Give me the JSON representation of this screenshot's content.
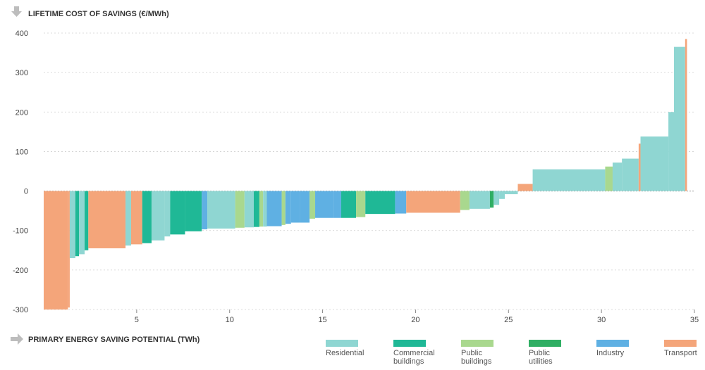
{
  "chart_data": {
    "type": "bar",
    "variant": "marginal-cost-curve",
    "title": "LIFETIME COST OF SAVINGS (€/MWh)",
    "xlabel": "PRIMARY ENERGY SAVING POTENTIAL (TWh)",
    "ylabel": "LIFETIME COST OF SAVINGS (€/MWh)",
    "xlim": [
      0,
      35
    ],
    "ylim": [
      -300,
      400
    ],
    "x_ticks": [
      "5",
      "10",
      "15",
      "20",
      "25",
      "30",
      "35"
    ],
    "y_ticks": [
      "400",
      "300",
      "200",
      "100",
      "0",
      "-100",
      "-200",
      "-300"
    ],
    "grid": "horizontal dashed",
    "legend_position": "bottom-right",
    "colors": {
      "Residential": "#8fd6d2",
      "Commercial buildings": "#1fb896",
      "Public buildings": "#a9d88e",
      "Public utilities": "#2fae63",
      "Industry": "#5fb0e3",
      "Transport": "#f4a57a"
    },
    "series": [
      {
        "name": "Residential"
      },
      {
        "name": "Commercial buildings"
      },
      {
        "name": "Public buildings"
      },
      {
        "name": "Public utilities"
      },
      {
        "name": "Industry"
      },
      {
        "name": "Transport"
      }
    ],
    "bars": [
      {
        "x0": 0.0,
        "x1": 1.3,
        "value": -300,
        "sector": "Transport"
      },
      {
        "x0": 1.3,
        "x1": 1.4,
        "value": -295,
        "sector": "Transport"
      },
      {
        "x0": 1.4,
        "x1": 1.7,
        "value": -170,
        "sector": "Residential"
      },
      {
        "x0": 1.7,
        "x1": 1.9,
        "value": -165,
        "sector": "Commercial buildings"
      },
      {
        "x0": 1.9,
        "x1": 2.2,
        "value": -160,
        "sector": "Residential"
      },
      {
        "x0": 2.2,
        "x1": 2.4,
        "value": -150,
        "sector": "Commercial buildings"
      },
      {
        "x0": 2.4,
        "x1": 4.4,
        "value": -145,
        "sector": "Transport"
      },
      {
        "x0": 4.4,
        "x1": 4.7,
        "value": -138,
        "sector": "Residential"
      },
      {
        "x0": 4.7,
        "x1": 5.3,
        "value": -135,
        "sector": "Transport"
      },
      {
        "x0": 5.3,
        "x1": 5.8,
        "value": -132,
        "sector": "Commercial buildings"
      },
      {
        "x0": 5.8,
        "x1": 6.5,
        "value": -125,
        "sector": "Residential"
      },
      {
        "x0": 6.5,
        "x1": 6.8,
        "value": -115,
        "sector": "Residential"
      },
      {
        "x0": 6.8,
        "x1": 7.6,
        "value": -110,
        "sector": "Commercial buildings"
      },
      {
        "x0": 7.6,
        "x1": 8.5,
        "value": -102,
        "sector": "Commercial buildings"
      },
      {
        "x0": 8.5,
        "x1": 8.8,
        "value": -97,
        "sector": "Industry"
      },
      {
        "x0": 8.8,
        "x1": 10.3,
        "value": -95,
        "sector": "Residential"
      },
      {
        "x0": 10.3,
        "x1": 10.8,
        "value": -93,
        "sector": "Public buildings"
      },
      {
        "x0": 10.8,
        "x1": 11.3,
        "value": -92,
        "sector": "Residential"
      },
      {
        "x0": 11.3,
        "x1": 11.6,
        "value": -91,
        "sector": "Commercial buildings"
      },
      {
        "x0": 11.6,
        "x1": 11.8,
        "value": -90,
        "sector": "Public buildings"
      },
      {
        "x0": 11.8,
        "x1": 12.0,
        "value": -90,
        "sector": "Residential"
      },
      {
        "x0": 12.0,
        "x1": 12.8,
        "value": -89,
        "sector": "Industry"
      },
      {
        "x0": 12.8,
        "x1": 13.0,
        "value": -86,
        "sector": "Public buildings"
      },
      {
        "x0": 13.0,
        "x1": 13.3,
        "value": -83,
        "sector": "Industry"
      },
      {
        "x0": 13.3,
        "x1": 13.8,
        "value": -80,
        "sector": "Industry"
      },
      {
        "x0": 13.8,
        "x1": 14.3,
        "value": -80,
        "sector": "Industry"
      },
      {
        "x0": 14.3,
        "x1": 14.6,
        "value": -70,
        "sector": "Public buildings"
      },
      {
        "x0": 14.6,
        "x1": 15.6,
        "value": -68,
        "sector": "Industry"
      },
      {
        "x0": 15.6,
        "x1": 16.0,
        "value": -68,
        "sector": "Industry"
      },
      {
        "x0": 16.0,
        "x1": 16.8,
        "value": -68,
        "sector": "Commercial buildings"
      },
      {
        "x0": 16.8,
        "x1": 17.3,
        "value": -66,
        "sector": "Public buildings"
      },
      {
        "x0": 17.3,
        "x1": 18.9,
        "value": -58,
        "sector": "Commercial buildings"
      },
      {
        "x0": 18.9,
        "x1": 19.5,
        "value": -57,
        "sector": "Industry"
      },
      {
        "x0": 19.5,
        "x1": 22.4,
        "value": -55,
        "sector": "Transport"
      },
      {
        "x0": 22.4,
        "x1": 22.9,
        "value": -48,
        "sector": "Public buildings"
      },
      {
        "x0": 22.9,
        "x1": 24.0,
        "value": -45,
        "sector": "Residential"
      },
      {
        "x0": 24.0,
        "x1": 24.2,
        "value": -42,
        "sector": "Public utilities"
      },
      {
        "x0": 24.2,
        "x1": 24.5,
        "value": -35,
        "sector": "Residential"
      },
      {
        "x0": 24.5,
        "x1": 24.8,
        "value": -20,
        "sector": "Residential"
      },
      {
        "x0": 24.8,
        "x1": 25.5,
        "value": -8,
        "sector": "Residential"
      },
      {
        "x0": 25.5,
        "x1": 26.3,
        "value": 18,
        "sector": "Transport"
      },
      {
        "x0": 26.3,
        "x1": 30.2,
        "value": 55,
        "sector": "Residential"
      },
      {
        "x0": 30.2,
        "x1": 30.6,
        "value": 62,
        "sector": "Public buildings"
      },
      {
        "x0": 30.6,
        "x1": 31.1,
        "value": 72,
        "sector": "Residential"
      },
      {
        "x0": 31.1,
        "x1": 32.0,
        "value": 82,
        "sector": "Residential"
      },
      {
        "x0": 32.0,
        "x1": 32.1,
        "value": 120,
        "sector": "Transport"
      },
      {
        "x0": 32.1,
        "x1": 33.6,
        "value": 138,
        "sector": "Residential"
      },
      {
        "x0": 33.6,
        "x1": 33.9,
        "value": 200,
        "sector": "Residential"
      },
      {
        "x0": 33.9,
        "x1": 34.5,
        "value": 365,
        "sector": "Residential"
      },
      {
        "x0": 34.5,
        "x1": 34.6,
        "value": 385,
        "sector": "Transport"
      }
    ],
    "legend": [
      {
        "label_line1": "Residential",
        "label_line2": "",
        "sector": "Residential"
      },
      {
        "label_line1": "Commercial",
        "label_line2": "buildings",
        "sector": "Commercial buildings"
      },
      {
        "label_line1": "Public",
        "label_line2": "buildings",
        "sector": "Public buildings"
      },
      {
        "label_line1": "Public",
        "label_line2": "utilities",
        "sector": "Public utilities"
      },
      {
        "label_line1": "Industry",
        "label_line2": "",
        "sector": "Industry"
      },
      {
        "label_line1": "Transport",
        "label_line2": "",
        "sector": "Transport"
      }
    ]
  }
}
